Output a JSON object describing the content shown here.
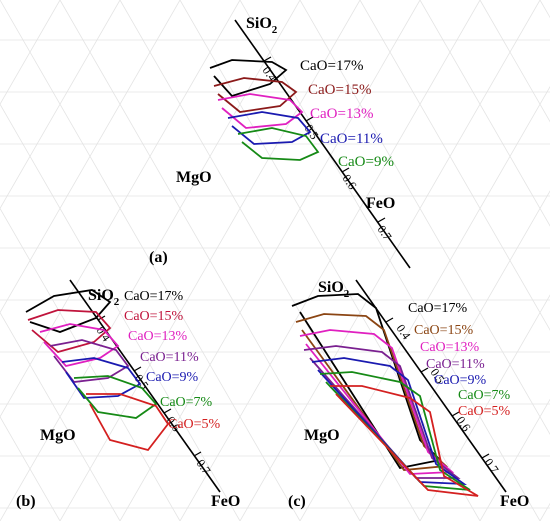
{
  "chart_data": [
    {
      "type": "ternary-line",
      "panel_label": "(a)",
      "vertices": {
        "top": "SiO",
        "top_subscript": "2",
        "left": "MgO",
        "right": "FeO"
      },
      "axis_ticks": [
        "0.4",
        "0.5",
        "0.6",
        "0.7"
      ],
      "series": [
        {
          "name": "CaO=17%",
          "color": "#000000"
        },
        {
          "name": "CaO=15%",
          "color": "#8b1a1a"
        },
        {
          "name": "CaO=13%",
          "color": "#e020c0"
        },
        {
          "name": "CaO=11%",
          "color": "#1a1ab0"
        },
        {
          "name": "CaO=9%",
          "color": "#168a16"
        }
      ]
    },
    {
      "type": "ternary-line",
      "panel_label": "(b)",
      "vertices": {
        "top": "SiO",
        "top_subscript": "2",
        "left": "MgO",
        "right": "FeO"
      },
      "axis_ticks": [
        "0.4",
        "0.5",
        "0.6",
        "0.7"
      ],
      "series": [
        {
          "name": "CaO=17%",
          "color": "#000000"
        },
        {
          "name": "CaO=15%",
          "color": "#c0143c"
        },
        {
          "name": "CaO=13%",
          "color": "#e020c0"
        },
        {
          "name": "CaO=11%",
          "color": "#7a2090"
        },
        {
          "name": "CaO=9%",
          "color": "#1a1ab0"
        },
        {
          "name": "CaO=7%",
          "color": "#168a16"
        },
        {
          "name": "CaO=5%",
          "color": "#d42020"
        }
      ]
    },
    {
      "type": "ternary-line",
      "panel_label": "(c)",
      "vertices": {
        "top": "SiO",
        "top_subscript": "2",
        "left": "MgO",
        "right": "FeO"
      },
      "axis_ticks": [
        "0.4",
        "0.5",
        "0.6",
        "0.7"
      ],
      "series": [
        {
          "name": "CaO=17%",
          "color": "#000000"
        },
        {
          "name": "CaO=15%",
          "color": "#8b4513"
        },
        {
          "name": "CaO=13%",
          "color": "#e020c0"
        },
        {
          "name": "CaO=11%",
          "color": "#7a2090"
        },
        {
          "name": "CaO=9%",
          "color": "#1a1ab0"
        },
        {
          "name": "CaO=7%",
          "color": "#168a16"
        },
        {
          "name": "CaO=5%",
          "color": "#d42020"
        }
      ]
    }
  ]
}
